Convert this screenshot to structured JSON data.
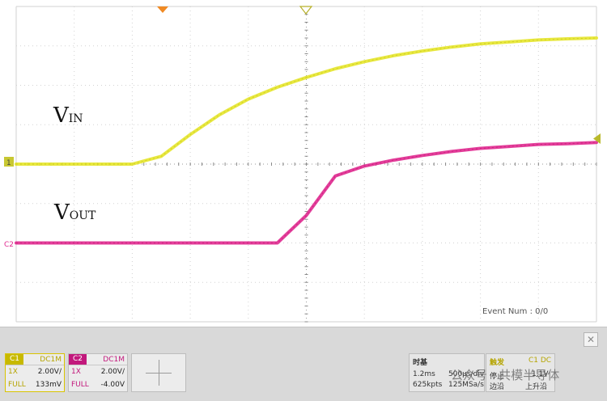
{
  "chart_data": {
    "type": "line",
    "title": "",
    "xlabel": "",
    "ylabel": "",
    "grid": true,
    "x": [
      0,
      0.5,
      1,
      1.5,
      2,
      2.5,
      3,
      3.5,
      4,
      4.5,
      5,
      5.5,
      6,
      6.5,
      7,
      7.5,
      8,
      8.5,
      9,
      9.5,
      10
    ],
    "xlim": [
      0,
      10
    ],
    "ylim": [
      -4,
      4
    ],
    "series": [
      {
        "name": "VIN",
        "color": "#e5e52a",
        "values": [
          0,
          0,
          0,
          0,
          0,
          0.2,
          0.75,
          1.25,
          1.65,
          1.95,
          2.2,
          2.42,
          2.6,
          2.75,
          2.87,
          2.97,
          3.05,
          3.1,
          3.15,
          3.18,
          3.2
        ]
      },
      {
        "name": "VOUT",
        "color": "#e0288f",
        "values": [
          -2.0,
          -2.0,
          -2.0,
          -2.0,
          -2.0,
          -2.0,
          -2.0,
          -2.0,
          -2.0,
          -2.0,
          -1.3,
          -0.3,
          -0.05,
          0.1,
          0.22,
          0.32,
          0.4,
          0.45,
          0.5,
          0.52,
          0.55
        ]
      }
    ]
  },
  "labels": {
    "vin_main": "V",
    "vin_sub": "IN",
    "vout_main": "V",
    "vout_sub": "OUT",
    "ch1_marker": "1",
    "ch2_marker": "C2",
    "event": "Event Num : 0/0"
  },
  "channels": [
    {
      "tag": "C1",
      "coupling": "DC1M",
      "probe": "1X",
      "scale": "2.00V/",
      "bw": "FULL",
      "offset": "133mV"
    },
    {
      "tag": "C2",
      "coupling": "DC1M",
      "probe": "1X",
      "scale": "2.00V/",
      "bw": "FULL",
      "offset": "-4.00V"
    }
  ],
  "close_button": "✕",
  "timebase": {
    "title": "时基",
    "timediv": "1.2ms",
    "sample": "500μs/div",
    "points": "625kpts",
    "rate": "125MSa/s"
  },
  "trigger": {
    "title": "触发",
    "source": "C1 DC",
    "status": "停止",
    "level": "1.1V",
    "type": "边沿",
    "slope": "上升沿"
  },
  "watermark": "公众号 · 共模半导体"
}
